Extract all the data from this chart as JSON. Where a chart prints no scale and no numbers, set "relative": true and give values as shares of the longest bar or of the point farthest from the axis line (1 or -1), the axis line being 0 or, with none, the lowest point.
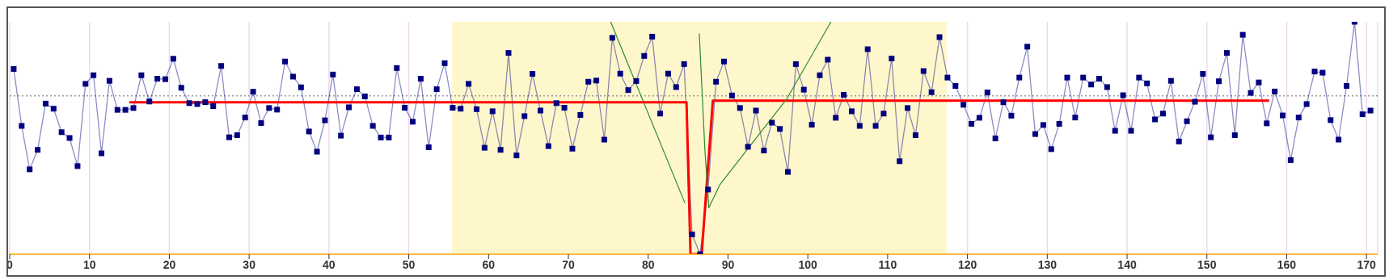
{
  "chart_data": {
    "type": "line",
    "relative": true,
    "xlim": [
      0,
      171.4
    ],
    "xticks": [
      0,
      10,
      20,
      30,
      40,
      50,
      60,
      70,
      80,
      90,
      100,
      110,
      120,
      130,
      140,
      150,
      160,
      170
    ],
    "grid": "x",
    "marker": "square",
    "series": [
      {
        "type": "line",
        "color": "#000080",
        "x": [
          0.5,
          1.5,
          2.5,
          3.5,
          4.5,
          5.5,
          6.5,
          7.5,
          8.5,
          9.5,
          10.5,
          11.5,
          12.5,
          13.5,
          14.5,
          15.5,
          16.5,
          17.5,
          18.5,
          19.5,
          20.5,
          21.5,
          22.5,
          23.5,
          24.5,
          25.5,
          26.5,
          27.5,
          28.5,
          29.5,
          30.5,
          31.5,
          32.5,
          33.5,
          34.5,
          35.5,
          36.5,
          37.5,
          38.5,
          39.5,
          40.5,
          41.5,
          42.5,
          43.5,
          44.5,
          45.5,
          46.5,
          47.5,
          48.5,
          49.5,
          50.5,
          51.5,
          52.5,
          53.5,
          54.5,
          55.5,
          56.5,
          57.5,
          58.5,
          59.5,
          60.5,
          61.5,
          62.5,
          63.5,
          64.5,
          65.5,
          66.5,
          67.5,
          68.5,
          69.5,
          70.5,
          71.5,
          72.5,
          73.5,
          74.5,
          75.5,
          76.5,
          77.5,
          78.5,
          79.5,
          80.5,
          81.5,
          82.5,
          83.5,
          84.5,
          85.5,
          86.5,
          87.5,
          88.5,
          89.5,
          90.5,
          91.5,
          92.5,
          93.5,
          94.5,
          95.5,
          96.5,
          97.5,
          98.5,
          99.5,
          100.5,
          101.5,
          102.5,
          103.5,
          104.5,
          105.5,
          106.5,
          107.5,
          108.5,
          109.5,
          110.5,
          111.5,
          112.5,
          113.5,
          114.5,
          115.5,
          116.5,
          117.5,
          118.5,
          119.5,
          120.5,
          121.5,
          122.5,
          123.5,
          124.5,
          125.5,
          126.5,
          127.5,
          128.5,
          129.5,
          130.5,
          131.5,
          132.5,
          133.5,
          134.5,
          135.5,
          136.5,
          137.5,
          138.5,
          139.5,
          140.5,
          141.5,
          142.5,
          143.5,
          144.5,
          145.5,
          146.5,
          147.5,
          148.5,
          149.5,
          150.5,
          151.5,
          152.5,
          153.5,
          154.5,
          155.5,
          156.5,
          157.5,
          158.5,
          159.5,
          160.5,
          161.5,
          162.5,
          163.5,
          164.5,
          165.5,
          166.5,
          167.5,
          168.5,
          169.5,
          170.5
        ],
        "values": [
          0.797,
          0.552,
          0.365,
          0.449,
          0.648,
          0.626,
          0.525,
          0.5,
          0.379,
          0.733,
          0.77,
          0.434,
          0.746,
          0.621,
          0.621,
          0.629,
          0.77,
          0.657,
          0.755,
          0.753,
          0.841,
          0.716,
          0.65,
          0.646,
          0.654,
          0.637,
          0.81,
          0.503,
          0.512,
          0.588,
          0.699,
          0.564,
          0.629,
          0.622,
          0.829,
          0.764,
          0.718,
          0.528,
          0.441,
          0.576,
          0.773,
          0.51,
          0.632,
          0.71,
          0.679,
          0.552,
          0.502,
          0.502,
          0.801,
          0.63,
          0.57,
          0.755,
          0.46,
          0.71,
          0.822,
          0.63,
          0.626,
          0.733,
          0.624,
          0.458,
          0.615,
          0.449,
          0.866,
          0.425,
          0.594,
          0.776,
          0.618,
          0.465,
          0.65,
          0.63,
          0.454,
          0.599,
          0.742,
          0.747,
          0.493,
          0.931,
          0.777,
          0.706,
          0.745,
          0.853,
          0.936,
          0.605,
          0.777,
          0.719,
          0.818,
          0.085,
          0,
          0.278,
          0.742,
          0.829,
          0.683,
          0.629,
          0.462,
          0.618,
          0.446,
          0.566,
          0.539,
          0.354,
          0.818,
          0.708,
          0.557,
          0.77,
          0.837,
          0.587,
          0.686,
          0.615,
          0.552,
          0.882,
          0.552,
          0.605,
          0.842,
          0.4,
          0.629,
          0.512,
          0.788,
          0.697,
          0.934,
          0.76,
          0.724,
          0.643,
          0.561,
          0.587,
          0.696,
          0.498,
          0.654,
          0.596,
          0.76,
          0.893,
          0.517,
          0.556,
          0.452,
          0.561,
          0.76,
          0.588,
          0.76,
          0.73,
          0.755,
          0.719,
          0.531,
          0.684,
          0.531,
          0.76,
          0.735,
          0.58,
          0.605,
          0.746,
          0.485,
          0.572,
          0.656,
          0.776,
          0.503,
          0.744,
          0.866,
          0.512,
          0.944,
          0.694,
          0.739,
          0.563,
          0.7,
          0.597,
          0.405,
          0.588,
          0.646,
          0.786,
          0.781,
          0.577,
          0.493,
          0.724,
          1,
          0.602,
          0.618
        ]
      },
      {
        "type": "line",
        "color": "#ff0000",
        "marker": "none",
        "x": [
          15,
          84.8,
          85.3,
          86.7,
          88.1,
          157.8
        ],
        "values": [
          0.654,
          0.654,
          0,
          0,
          0.661,
          0.661
        ]
      },
      {
        "type": "line",
        "color": "#2e8b2e",
        "marker": "none",
        "x": [
          75.3,
          84.6
        ],
        "values": [
          1,
          0.22
        ]
      },
      {
        "type": "line",
        "color": "#2e8b2e",
        "marker": "none",
        "x": [
          86.4,
          87.1,
          87.6,
          89,
          92.4,
          97.4,
          102.9
        ],
        "values": [
          0.95,
          0.45,
          0.2,
          0.3,
          0.45,
          0.67,
          1
        ]
      }
    ],
    "ref_lines": [
      {
        "axis": "y",
        "value": 0.681,
        "color": "#999999",
        "line_style": "dotted"
      }
    ],
    "bands": [
      {
        "axis": "x",
        "from": 55.4,
        "to": 117.4,
        "color": "#fff7cc"
      }
    ]
  }
}
